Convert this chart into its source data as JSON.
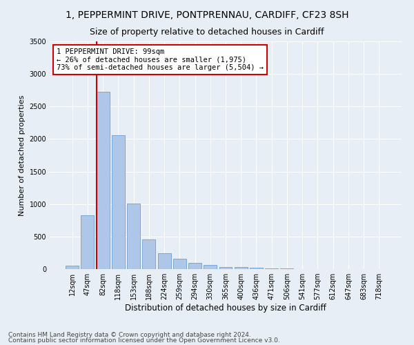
{
  "title1": "1, PEPPERMINT DRIVE, PONTPRENNAU, CARDIFF, CF23 8SH",
  "title2": "Size of property relative to detached houses in Cardiff",
  "xlabel": "Distribution of detached houses by size in Cardiff",
  "ylabel": "Number of detached properties",
  "footnote1": "Contains HM Land Registry data © Crown copyright and database right 2024.",
  "footnote2": "Contains public sector information licensed under the Open Government Licence v3.0.",
  "bar_labels": [
    "12sqm",
    "47sqm",
    "82sqm",
    "118sqm",
    "153sqm",
    "188sqm",
    "224sqm",
    "259sqm",
    "294sqm",
    "330sqm",
    "365sqm",
    "400sqm",
    "436sqm",
    "471sqm",
    "506sqm",
    "541sqm",
    "577sqm",
    "612sqm",
    "647sqm",
    "683sqm",
    "718sqm"
  ],
  "bar_values": [
    55,
    830,
    2730,
    2060,
    1010,
    455,
    240,
    155,
    95,
    60,
    35,
    30,
    20,
    15,
    8,
    5,
    3,
    2,
    1,
    1,
    1
  ],
  "bar_color": "#aec6e8",
  "bar_edge_color": "#6a9fd8",
  "vline_color": "#cc0000",
  "annotation_text": "1 PEPPERMINT DRIVE: 99sqm\n← 26% of detached houses are smaller (1,975)\n73% of semi-detached houses are larger (5,504) →",
  "annotation_box_color": "#ffffff",
  "annotation_box_edge": "#cc0000",
  "ylim": [
    0,
    3500
  ],
  "background_color": "#e8eef5",
  "grid_color": "#ffffff",
  "title1_fontsize": 10,
  "title2_fontsize": 9,
  "footnote_fontsize": 6.5
}
